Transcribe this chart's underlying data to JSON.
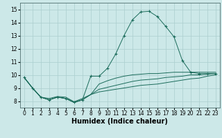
{
  "xlabel": "Humidex (Indice chaleur)",
  "background_color": "#cce8e8",
  "grid_color": "#aacece",
  "line_color": "#1a6b5a",
  "ylim": [
    7.5,
    15.5
  ],
  "xlim": [
    -0.5,
    23.5
  ],
  "yticks": [
    8,
    9,
    10,
    11,
    12,
    13,
    14,
    15
  ],
  "xticks": [
    0,
    1,
    2,
    3,
    4,
    5,
    6,
    7,
    8,
    9,
    10,
    11,
    12,
    13,
    14,
    15,
    16,
    17,
    18,
    19,
    20,
    21,
    22,
    23
  ],
  "series_main": {
    "x": [
      0,
      1,
      2,
      3,
      4,
      5,
      6,
      7,
      8,
      9,
      10,
      11,
      12,
      13,
      14,
      15,
      16,
      17,
      18,
      19,
      20,
      21,
      22,
      23
    ],
    "y": [
      9.8,
      9.0,
      8.3,
      8.1,
      8.3,
      8.2,
      7.9,
      8.1,
      9.9,
      9.9,
      10.5,
      11.6,
      13.0,
      14.2,
      14.8,
      14.85,
      14.45,
      13.7,
      12.9,
      11.1,
      10.2,
      10.1,
      10.1,
      10.1
    ]
  },
  "series_flat": [
    {
      "x": [
        0,
        1,
        2,
        3,
        4,
        5,
        6,
        7,
        8,
        9,
        10,
        11,
        12,
        13,
        14,
        15,
        16,
        17,
        18,
        19,
        20,
        21,
        22,
        23
      ],
      "y": [
        9.8,
        9.0,
        8.3,
        8.2,
        8.35,
        8.3,
        7.95,
        8.2,
        8.5,
        9.3,
        9.55,
        9.75,
        9.9,
        10.0,
        10.05,
        10.1,
        10.1,
        10.15,
        10.2,
        10.2,
        10.2,
        10.2,
        10.2,
        10.2
      ]
    },
    {
      "x": [
        0,
        1,
        2,
        3,
        4,
        5,
        6,
        7,
        8,
        9,
        10,
        11,
        12,
        13,
        14,
        15,
        16,
        17,
        18,
        19,
        20,
        21,
        22,
        23
      ],
      "y": [
        9.8,
        9.0,
        8.3,
        8.1,
        8.3,
        8.2,
        7.9,
        8.1,
        8.5,
        8.9,
        9.05,
        9.2,
        9.35,
        9.5,
        9.6,
        9.65,
        9.7,
        9.8,
        9.85,
        9.9,
        10.0,
        10.0,
        10.05,
        10.1
      ]
    },
    {
      "x": [
        0,
        1,
        2,
        3,
        4,
        5,
        6,
        7,
        8,
        9,
        10,
        11,
        12,
        13,
        14,
        15,
        16,
        17,
        18,
        19,
        20,
        21,
        22,
        23
      ],
      "y": [
        9.8,
        9.0,
        8.3,
        8.1,
        8.3,
        8.2,
        7.9,
        8.1,
        8.5,
        8.7,
        8.8,
        8.9,
        9.0,
        9.1,
        9.2,
        9.25,
        9.3,
        9.4,
        9.5,
        9.6,
        9.7,
        9.75,
        9.9,
        10.0
      ]
    }
  ]
}
